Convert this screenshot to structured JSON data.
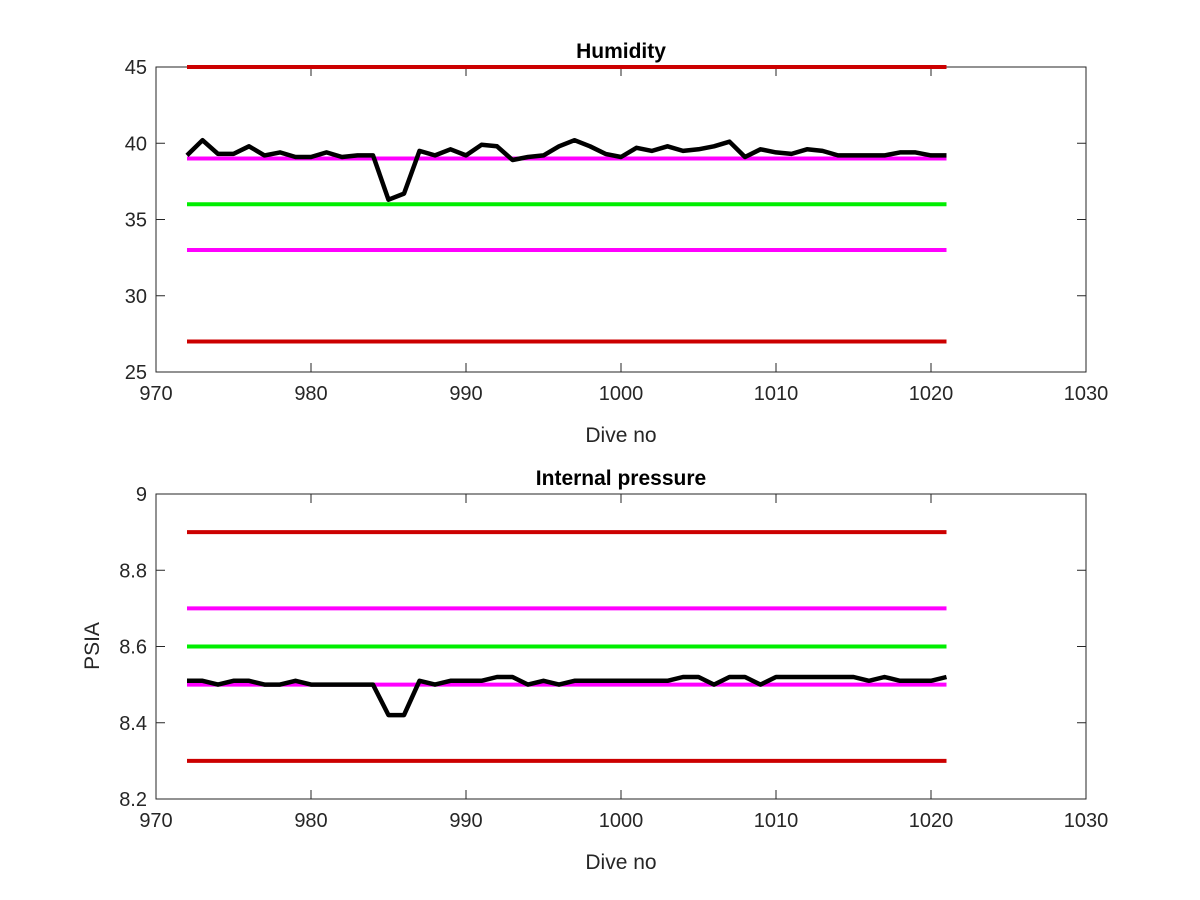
{
  "chart_data": [
    {
      "type": "line",
      "title": "Humidity",
      "xlabel": "Dive no",
      "ylabel": "",
      "xlim": [
        970,
        1030
      ],
      "ylim": [
        25,
        45
      ],
      "xticks": [
        "970",
        "980",
        "990",
        "1000",
        "1010",
        "1020",
        "1030"
      ],
      "yticks": [
        "25",
        "30",
        "35",
        "40",
        "45"
      ],
      "grid": false,
      "series": [
        {
          "color": "#cc0000",
          "x": [
            972,
            1021
          ],
          "y": [
            45,
            45
          ]
        },
        {
          "color": "#ff00ff",
          "x": [
            972,
            1021
          ],
          "y": [
            39,
            39
          ]
        },
        {
          "color": "#00ee00",
          "x": [
            972,
            1021
          ],
          "y": [
            36,
            36
          ]
        },
        {
          "color": "#ff00ff",
          "x": [
            972,
            1021
          ],
          "y": [
            33,
            33
          ]
        },
        {
          "color": "#cc0000",
          "x": [
            972,
            1021
          ],
          "y": [
            27,
            27
          ]
        },
        {
          "color": "#000000",
          "x": [
            972,
            973,
            974,
            975,
            976,
            977,
            978,
            979,
            980,
            981,
            982,
            983,
            984,
            985,
            986,
            987,
            988,
            989,
            990,
            991,
            992,
            993,
            994,
            995,
            996,
            997,
            998,
            999,
            1000,
            1001,
            1002,
            1003,
            1004,
            1005,
            1006,
            1007,
            1008,
            1009,
            1010,
            1011,
            1012,
            1013,
            1014,
            1015,
            1016,
            1017,
            1018,
            1019,
            1020,
            1021
          ],
          "y": [
            39.2,
            40.2,
            39.3,
            39.3,
            39.8,
            39.2,
            39.4,
            39.1,
            39.1,
            39.4,
            39.1,
            39.2,
            39.2,
            36.3,
            36.7,
            39.5,
            39.2,
            39.6,
            39.2,
            39.9,
            39.8,
            38.9,
            39.1,
            39.2,
            39.8,
            40.2,
            39.8,
            39.3,
            39.1,
            39.7,
            39.5,
            39.8,
            39.5,
            39.6,
            39.8,
            40.1,
            39.1,
            39.6,
            39.4,
            39.3,
            39.6,
            39.5,
            39.2,
            39.2,
            39.2,
            39.2,
            39.4,
            39.4,
            39.2,
            39.2
          ]
        }
      ]
    },
    {
      "type": "line",
      "title": "Internal pressure",
      "xlabel": "Dive no",
      "ylabel": "PSIA",
      "xlim": [
        970,
        1030
      ],
      "ylim": [
        8.2,
        9
      ],
      "xticks": [
        "970",
        "980",
        "990",
        "1000",
        "1010",
        "1020",
        "1030"
      ],
      "yticks": [
        "8.2",
        "8.4",
        "8.6",
        "8.8",
        "9"
      ],
      "grid": false,
      "series": [
        {
          "color": "#cc0000",
          "x": [
            972,
            1021
          ],
          "y": [
            8.9,
            8.9
          ]
        },
        {
          "color": "#ff00ff",
          "x": [
            972,
            1021
          ],
          "y": [
            8.7,
            8.7
          ]
        },
        {
          "color": "#00ee00",
          "x": [
            972,
            1021
          ],
          "y": [
            8.6,
            8.6
          ]
        },
        {
          "color": "#ff00ff",
          "x": [
            972,
            1021
          ],
          "y": [
            8.5,
            8.5
          ]
        },
        {
          "color": "#cc0000",
          "x": [
            972,
            1021
          ],
          "y": [
            8.3,
            8.3
          ]
        },
        {
          "color": "#000000",
          "x": [
            972,
            973,
            974,
            975,
            976,
            977,
            978,
            979,
            980,
            981,
            982,
            983,
            984,
            985,
            986,
            987,
            988,
            989,
            990,
            991,
            992,
            993,
            994,
            995,
            996,
            997,
            998,
            999,
            1000,
            1001,
            1002,
            1003,
            1004,
            1005,
            1006,
            1007,
            1008,
            1009,
            1010,
            1011,
            1012,
            1013,
            1014,
            1015,
            1016,
            1017,
            1018,
            1019,
            1020,
            1021
          ],
          "y": [
            8.51,
            8.51,
            8.5,
            8.51,
            8.51,
            8.5,
            8.5,
            8.51,
            8.5,
            8.5,
            8.5,
            8.5,
            8.5,
            8.42,
            8.42,
            8.51,
            8.5,
            8.51,
            8.51,
            8.51,
            8.52,
            8.52,
            8.5,
            8.51,
            8.5,
            8.51,
            8.51,
            8.51,
            8.51,
            8.51,
            8.51,
            8.51,
            8.52,
            8.52,
            8.5,
            8.52,
            8.52,
            8.5,
            8.52,
            8.52,
            8.52,
            8.52,
            8.52,
            8.52,
            8.51,
            8.52,
            8.51,
            8.51,
            8.51,
            8.52
          ]
        }
      ]
    }
  ]
}
